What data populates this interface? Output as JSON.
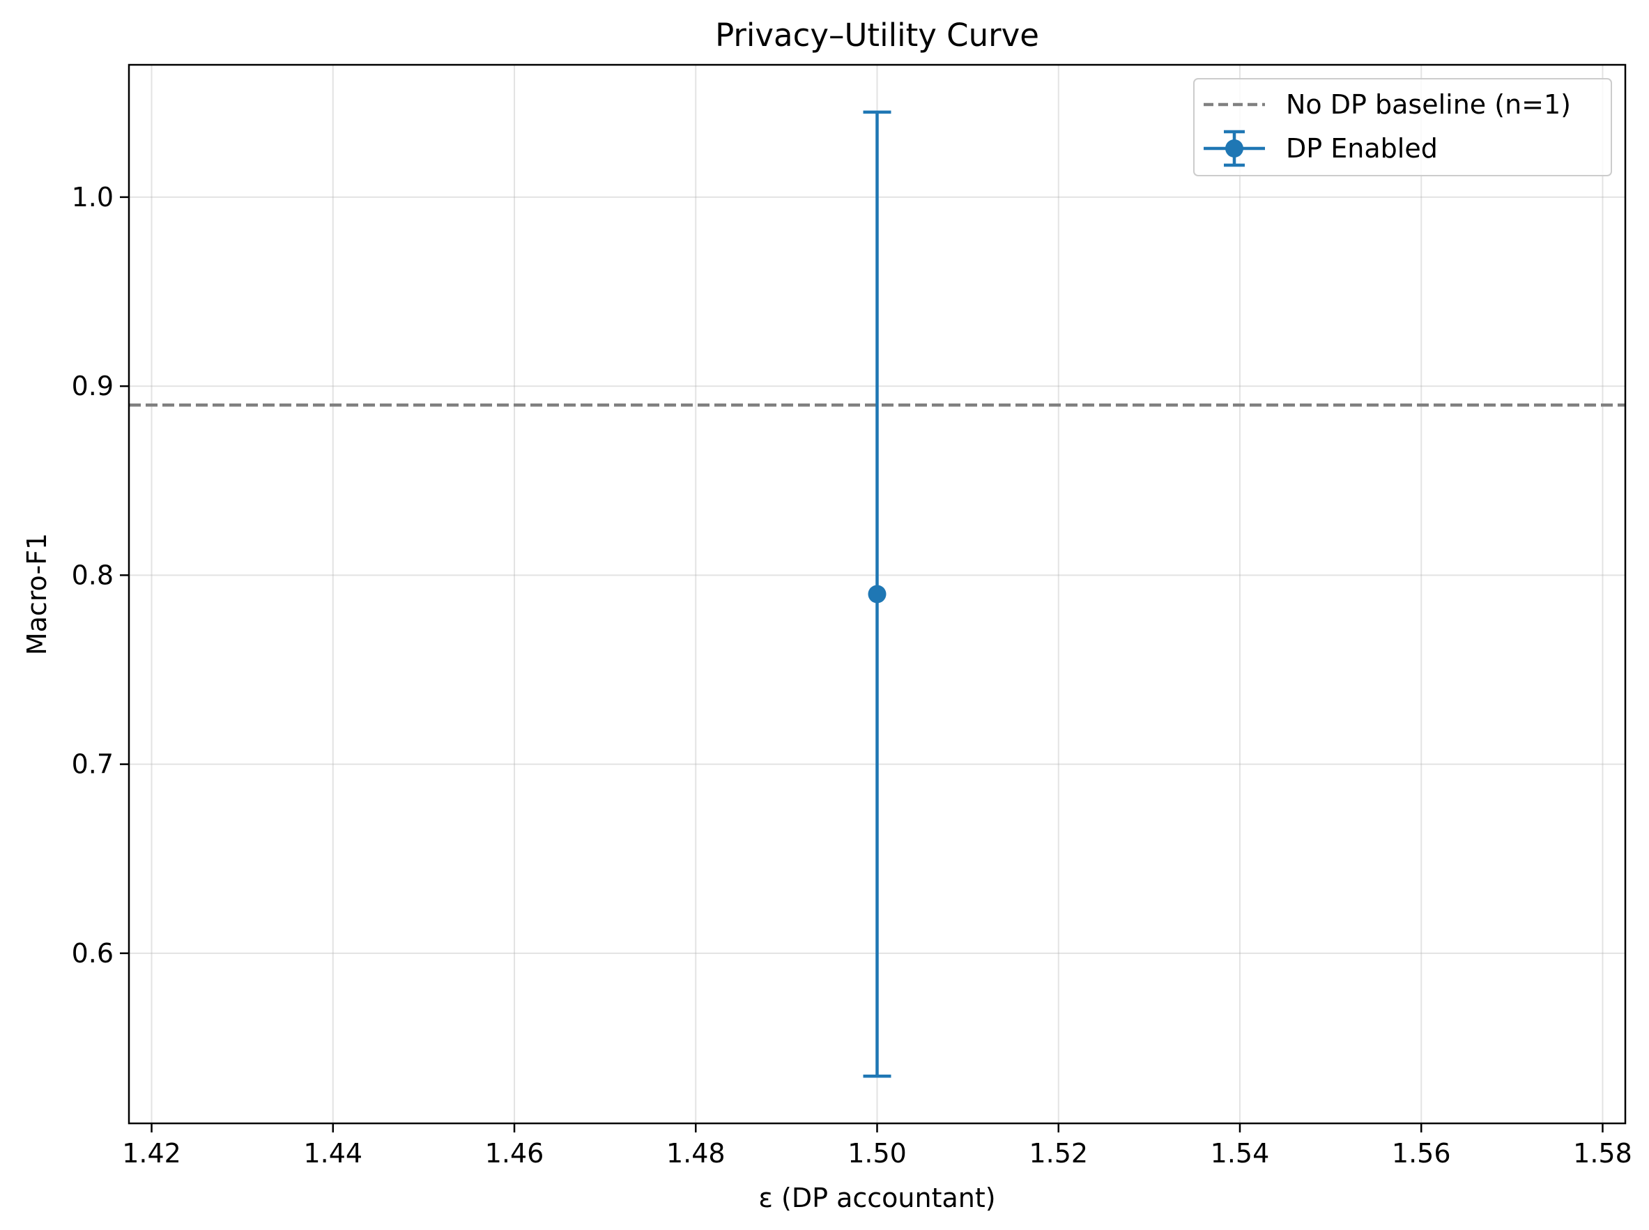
{
  "chart_data": {
    "type": "scatter",
    "title": "Privacy–Utility Curve",
    "xlabel": "ε (DP accountant)",
    "ylabel": "Macro-F1",
    "xlim": [
      1.4175,
      1.5825
    ],
    "ylim": [
      0.51,
      1.07
    ],
    "grid": true,
    "legend_position": "top-right",
    "x_ticks": [
      "1.42",
      "1.44",
      "1.46",
      "1.48",
      "1.50",
      "1.52",
      "1.54",
      "1.56",
      "1.58"
    ],
    "y_ticks": [
      "0.6",
      "0.7",
      "0.8",
      "0.9",
      "1.0"
    ],
    "baseline": {
      "name": "No DP baseline (n=1)",
      "y": 0.89,
      "color": "#808080",
      "style": "dashed"
    },
    "series": [
      {
        "name": "DP Enabled",
        "color": "#1f77b4",
        "points": [
          {
            "x": 1.5,
            "y": 0.79,
            "ylow": 0.535,
            "yhigh": 1.045
          }
        ]
      }
    ]
  }
}
